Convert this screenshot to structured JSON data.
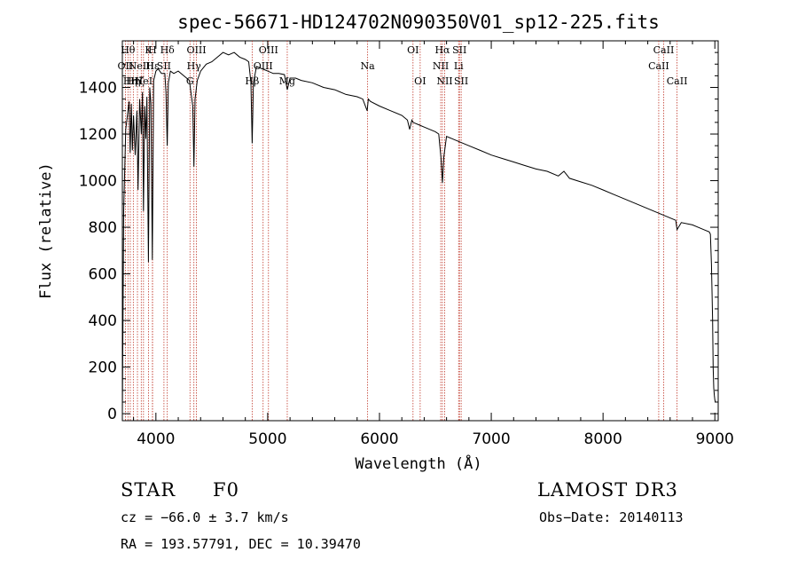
{
  "chart_data": {
    "type": "line",
    "title": "spec-56671-HD124702N090350V01_sp12-225.fits",
    "xlabel": "Wavelength (Å)",
    "ylabel": "Flux (relative)",
    "xlim": [
      3700,
      9030
    ],
    "ylim": [
      -30,
      1600
    ],
    "xticks": [
      4000,
      5000,
      6000,
      7000,
      8000,
      9000
    ],
    "yticks": [
      0,
      200,
      400,
      600,
      800,
      1000,
      1200,
      1400
    ],
    "grid": false,
    "series": [
      {
        "name": "Flux",
        "x": [
          3700,
          3712,
          3730,
          3745,
          3760,
          3770,
          3780,
          3790,
          3800,
          3815,
          3830,
          3840,
          3855,
          3870,
          3880,
          3889,
          3900,
          3910,
          3920,
          3933,
          3945,
          3955,
          3968,
          3980,
          3990,
          4000,
          4020,
          4050,
          4080,
          4090,
          4101,
          4112,
          4130,
          4160,
          4200,
          4250,
          4300,
          4330,
          4340,
          4350,
          4370,
          4400,
          4450,
          4500,
          4550,
          4600,
          4650,
          4700,
          4750,
          4800,
          4830,
          4850,
          4861,
          4872,
          4900,
          4950,
          5000,
          5050,
          5100,
          5150,
          5175,
          5200,
          5250,
          5300,
          5400,
          5500,
          5600,
          5700,
          5800,
          5850,
          5890,
          5900,
          5920,
          6000,
          6100,
          6200,
          6250,
          6270,
          6290,
          6300,
          6350,
          6400,
          6450,
          6500,
          6530,
          6550,
          6563,
          6575,
          6600,
          6650,
          6700,
          6800,
          6900,
          7000,
          7100,
          7200,
          7300,
          7400,
          7500,
          7600,
          7650,
          7700,
          7800,
          7900,
          8000,
          8100,
          8200,
          8300,
          8400,
          8500,
          8550,
          8600,
          8650,
          8662,
          8700,
          8800,
          8900,
          8950,
          8960,
          8970,
          8980,
          8985,
          8990,
          8995,
          9000,
          9005
        ],
        "y": [
          0,
          870,
          1220,
          1280,
          1340,
          1120,
          1330,
          1130,
          1280,
          1110,
          1300,
          960,
          1350,
          1200,
          1380,
          870,
          1320,
          1180,
          1360,
          650,
          1400,
          1330,
          660,
          1430,
          1450,
          1470,
          1480,
          1460,
          1460,
          1380,
          1150,
          1420,
          1470,
          1460,
          1470,
          1450,
          1430,
          1320,
          1060,
          1350,
          1430,
          1470,
          1500,
          1510,
          1530,
          1550,
          1540,
          1550,
          1530,
          1520,
          1510,
          1420,
          1160,
          1420,
          1490,
          1480,
          1470,
          1460,
          1460,
          1455,
          1390,
          1440,
          1440,
          1430,
          1420,
          1400,
          1390,
          1370,
          1360,
          1350,
          1300,
          1350,
          1340,
          1320,
          1300,
          1280,
          1260,
          1220,
          1260,
          1250,
          1240,
          1230,
          1220,
          1210,
          1200,
          1100,
          990,
          1100,
          1190,
          1180,
          1170,
          1150,
          1130,
          1110,
          1095,
          1080,
          1065,
          1050,
          1040,
          1020,
          1040,
          1010,
          995,
          980,
          960,
          940,
          920,
          900,
          880,
          860,
          850,
          840,
          830,
          790,
          820,
          810,
          790,
          780,
          770,
          640,
          400,
          200,
          110,
          80,
          60,
          50
        ]
      }
    ],
    "line_ids": [
      {
        "wave": 3727,
        "label": "OII",
        "row": 1
      },
      {
        "wave": 3750,
        "label": "Hθ",
        "row": 0
      },
      {
        "wave": 3771,
        "label": "Hη",
        "row": 2
      },
      {
        "wave": 3798,
        "label": "Hη",
        "row": 2
      },
      {
        "wave": 3835,
        "label": "Hζ",
        "row": 2
      },
      {
        "wave": 3869,
        "label": "NeIII",
        "row": 1
      },
      {
        "wave": 3889,
        "label": "HeI",
        "row": 2
      },
      {
        "wave": 3934,
        "label": "K",
        "row": 0
      },
      {
        "wave": 3969,
        "label": "H",
        "row": 0
      },
      {
        "wave": 3970,
        "label": "Hε",
        "row": 1
      },
      {
        "wave": 4072,
        "label": "SII",
        "row": 1
      },
      {
        "wave": 4102,
        "label": "Hδ",
        "row": 0
      },
      {
        "wave": 4305,
        "label": "G",
        "row": 2
      },
      {
        "wave": 4340,
        "label": "Hγ",
        "row": 1
      },
      {
        "wave": 4363,
        "label": "OIII",
        "row": 0
      },
      {
        "wave": 4861,
        "label": "Hβ",
        "row": 2
      },
      {
        "wave": 4959,
        "label": "OIII",
        "row": 1
      },
      {
        "wave": 5007,
        "label": "OIII",
        "row": 0
      },
      {
        "wave": 5175,
        "label": "Mg",
        "row": 2
      },
      {
        "wave": 5894,
        "label": "Na",
        "row": 1
      },
      {
        "wave": 6300,
        "label": "OI",
        "row": 0
      },
      {
        "wave": 6364,
        "label": "OI",
        "row": 2
      },
      {
        "wave": 6548,
        "label": "NII",
        "row": 1
      },
      {
        "wave": 6563,
        "label": "Hα",
        "row": 0
      },
      {
        "wave": 6583,
        "label": "NII",
        "row": 2
      },
      {
        "wave": 6708,
        "label": "Li",
        "row": 1
      },
      {
        "wave": 6716,
        "label": "SII",
        "row": 0
      },
      {
        "wave": 6731,
        "label": "SII",
        "row": 2
      },
      {
        "wave": 8498,
        "label": "CaII",
        "row": 1
      },
      {
        "wave": 8542,
        "label": "CaII",
        "row": 0
      },
      {
        "wave": 8662,
        "label": "CaII",
        "row": 2
      }
    ],
    "colors": {
      "spectrum": "#000000",
      "lines": "#c0392b",
      "labels": "#000000"
    }
  },
  "footer": {
    "obj_class": "STAR",
    "subclass": "F0",
    "survey": "LAMOST DR3",
    "redshift": "cz = −66.0 ± 3.7 km/s",
    "obs_date": "Obs−Date: 20140113",
    "coords": "RA = 193.57791, DEC =  10.39470"
  }
}
